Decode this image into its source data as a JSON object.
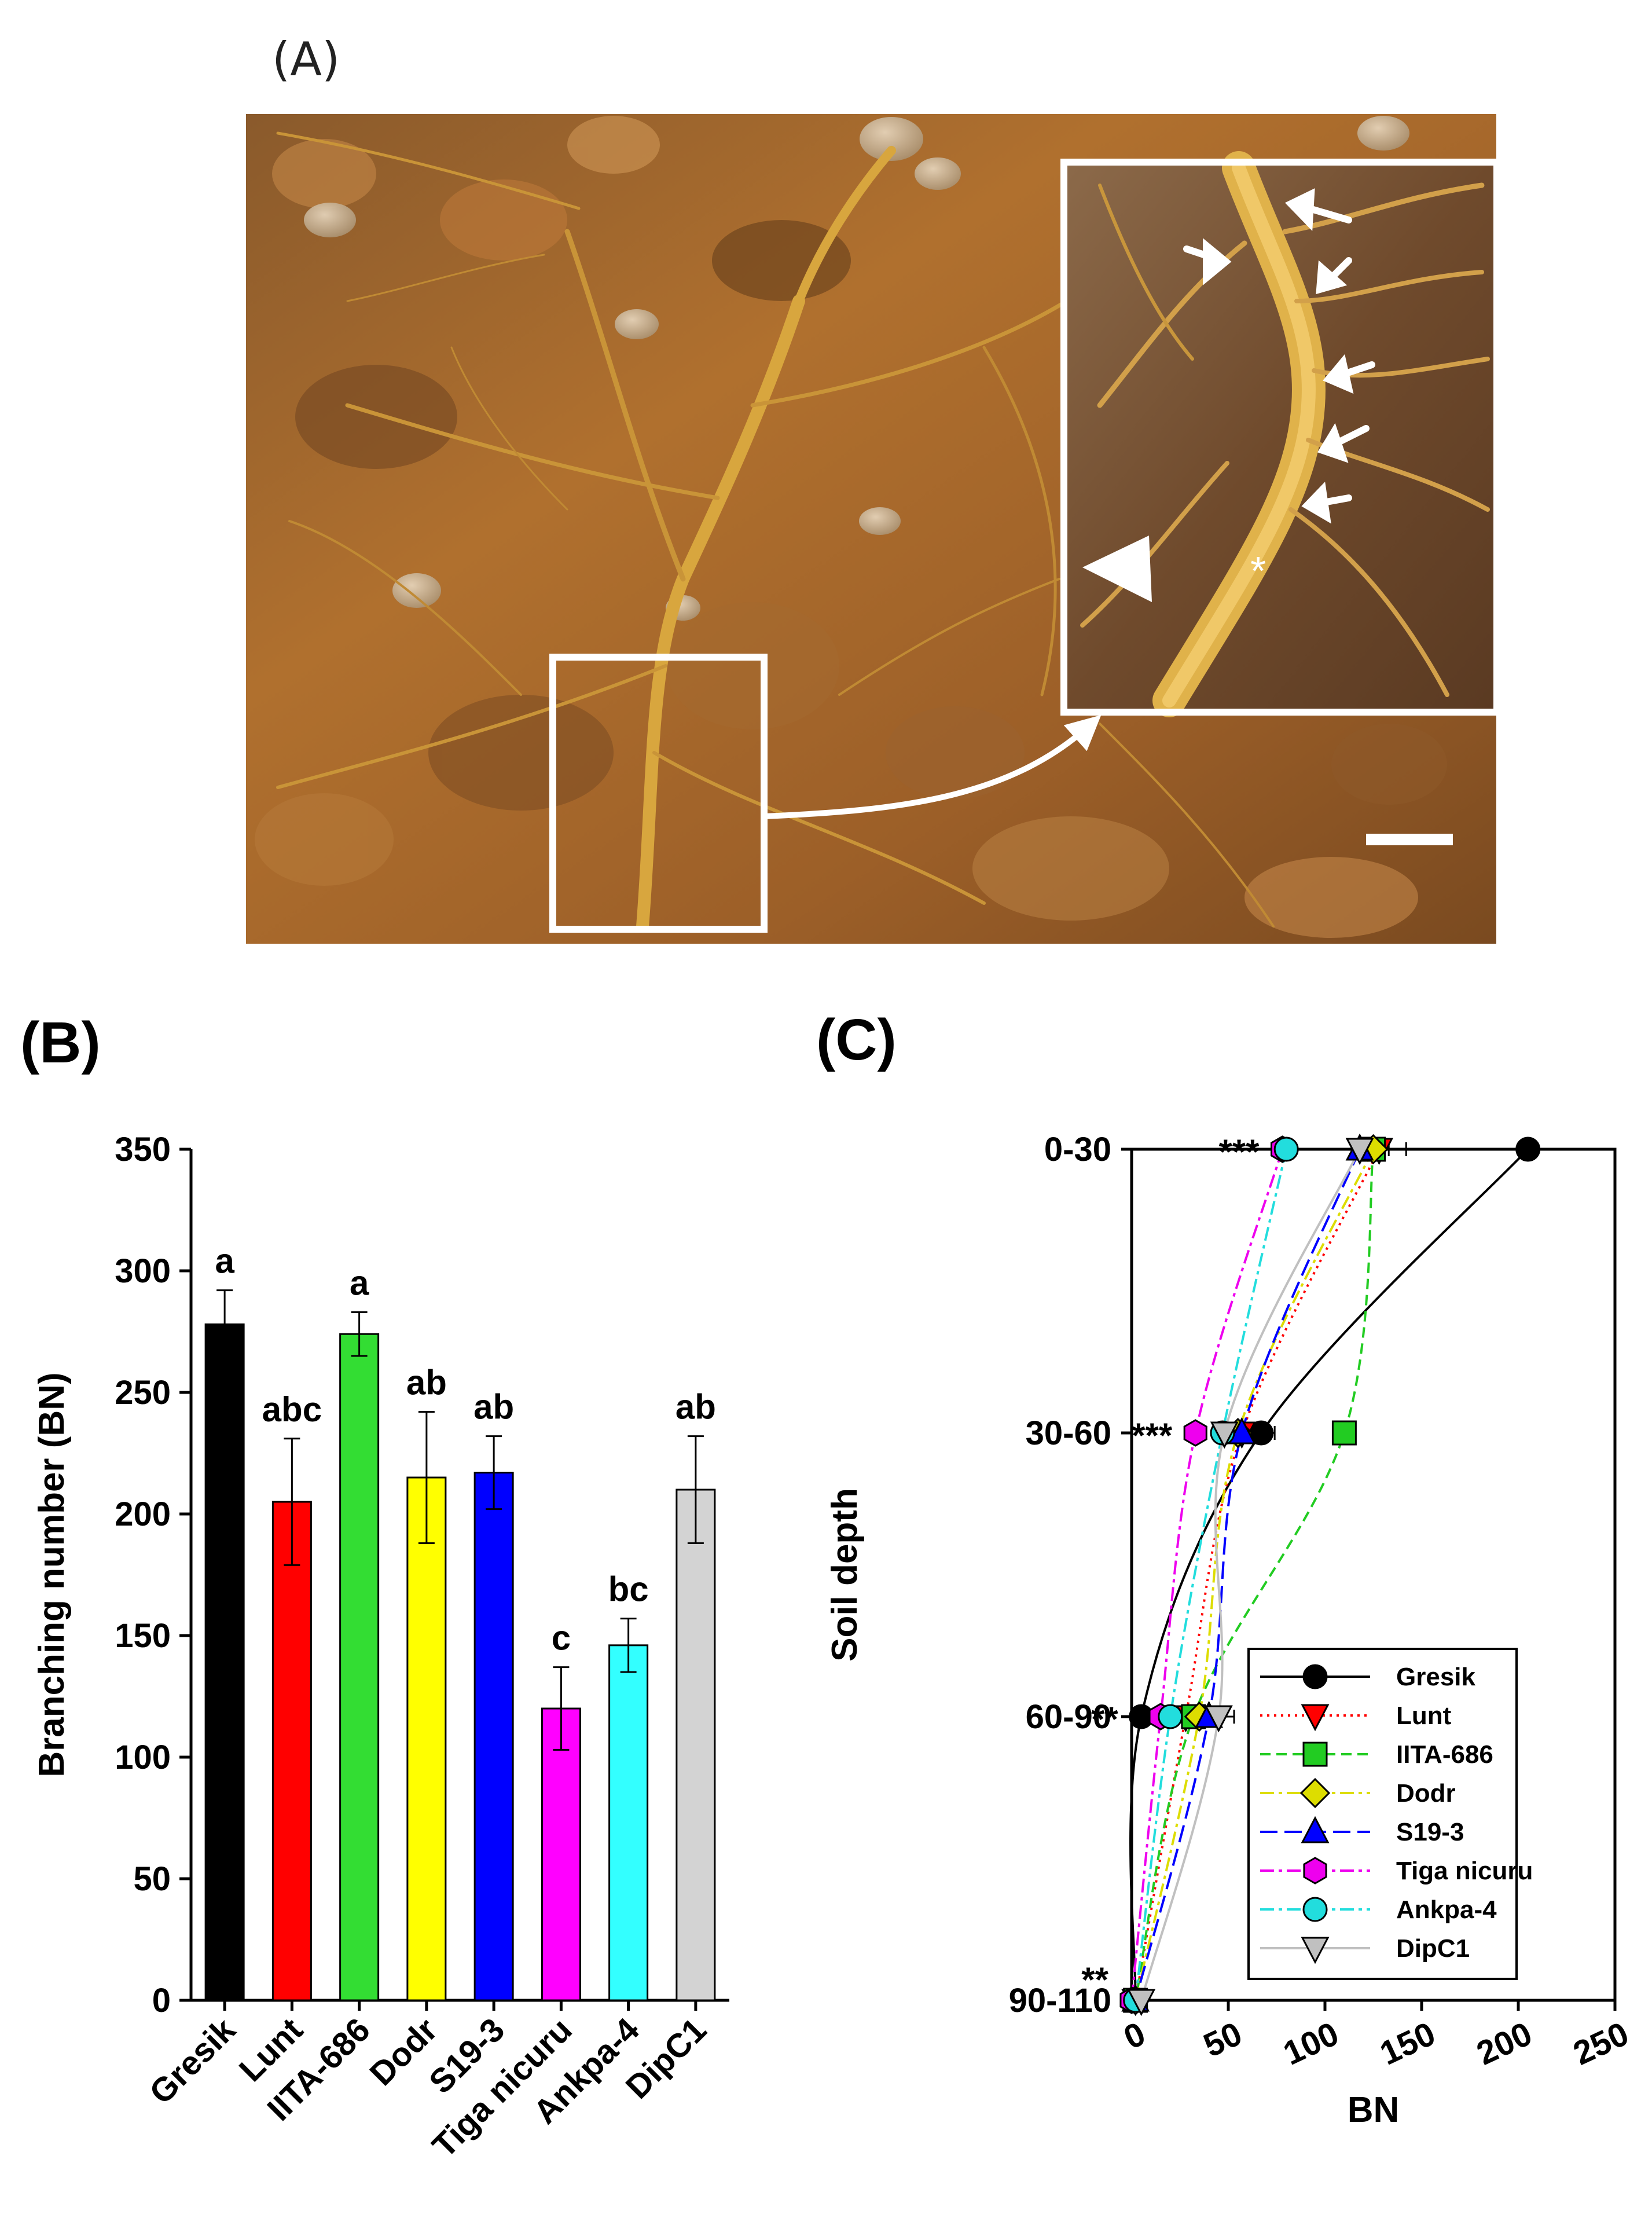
{
  "panels": {
    "a_label": "(A)",
    "b_label": "(B)",
    "c_label": "(C)"
  },
  "photo": {
    "description_icon": "root-photo",
    "inset_marker": "*"
  },
  "chart_data": [
    {
      "type": "bar",
      "ylabel": "Branching number (BN)",
      "xlabel": "",
      "ylim": [
        0,
        350
      ],
      "yticks": [
        0,
        50,
        100,
        150,
        200,
        250,
        300,
        350
      ],
      "categories": [
        "Gresik",
        "Lunt",
        "IITA-686",
        "Dodr",
        "S19-3",
        "Tiga nicuru",
        "Ankpa-4",
        "DipC1"
      ],
      "values": [
        278,
        205,
        274,
        215,
        217,
        120,
        146,
        210
      ],
      "errors": [
        14,
        26,
        9,
        27,
        15,
        17,
        11,
        22
      ],
      "letters": [
        "a",
        "abc",
        "a",
        "ab",
        "ab",
        "c",
        "bc",
        "ab"
      ],
      "colors": [
        "#000000",
        "#ff0000",
        "#33dd33",
        "#ffff00",
        "#0000ff",
        "#ff00ff",
        "#33ffff",
        "#d3d3d3"
      ]
    },
    {
      "type": "line",
      "xlabel": "BN",
      "ylabel": "Soil depth",
      "xlim": [
        0,
        250
      ],
      "xticks": [
        0,
        50,
        100,
        150,
        200,
        250
      ],
      "depths": [
        "0-30",
        "30-60",
        "60-90",
        "90-110"
      ],
      "significance": [
        "***",
        "***",
        "**",
        "**"
      ],
      "series": [
        {
          "name": "Gresik",
          "values": [
            205,
            67,
            5,
            2
          ],
          "err": [
            0,
            7,
            0,
            0
          ],
          "color": "#000000",
          "marker": "circle",
          "dash": ""
        },
        {
          "name": "Lunt",
          "values": [
            128,
            57,
            28,
            2
          ],
          "err": [
            14,
            6,
            5,
            0
          ],
          "color": "#ff0000",
          "marker": "triangle-down",
          "dash": "4,8"
        },
        {
          "name": "IITA-686",
          "values": [
            125,
            110,
            32,
            2
          ],
          "err": [
            6,
            0,
            0,
            0
          ],
          "color": "#22cc22",
          "marker": "square",
          "dash": "18,10"
        },
        {
          "name": "Dodr",
          "values": [
            125,
            55,
            35,
            2
          ],
          "err": [
            8,
            5,
            4,
            0
          ],
          "color": "#dddd00",
          "marker": "diamond",
          "dash": "24,8,6,8"
        },
        {
          "name": "S19-3",
          "values": [
            118,
            57,
            40,
            2
          ],
          "err": [
            5,
            6,
            7,
            0
          ],
          "color": "#0000ff",
          "marker": "triangle-up",
          "dash": "30,12"
        },
        {
          "name": "Tiga nicuru",
          "values": [
            78,
            33,
            15,
            0
          ],
          "err": [
            0,
            0,
            0,
            0
          ],
          "color": "#ee00ee",
          "marker": "hexagon",
          "dash": "24,8,6,8"
        },
        {
          "name": "Ankpa-4",
          "values": [
            80,
            47,
            20,
            2
          ],
          "err": [
            0,
            0,
            0,
            0
          ],
          "color": "#22dddd",
          "marker": "circle",
          "dash": "24,8,6,8"
        },
        {
          "name": "DipC1",
          "values": [
            118,
            48,
            45,
            5
          ],
          "err": [
            5,
            5,
            8,
            0
          ],
          "color": "#c0c0c0",
          "marker": "triangle-down",
          "dash": ""
        }
      ]
    }
  ]
}
